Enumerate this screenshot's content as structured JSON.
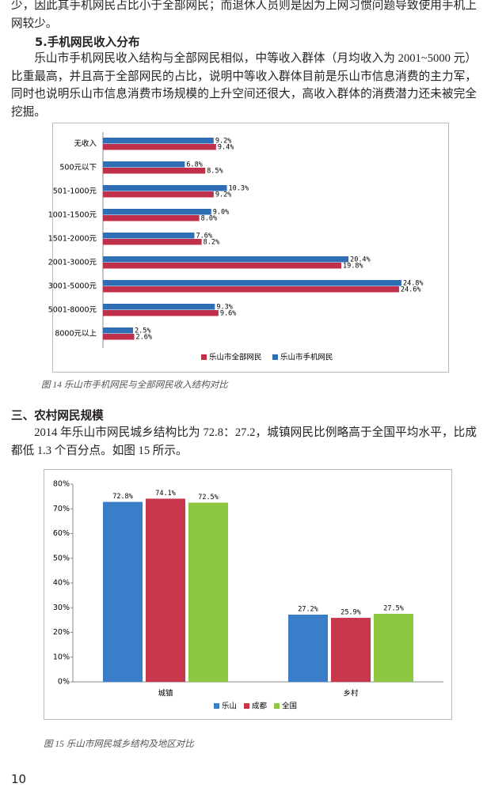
{
  "paragraphs": [
    "少，因此其手机网民占比小于全部网民；而退休人员则是因为上网习惯问题导致使用手机上网较少。",
    "乐山市手机网民收入结构与全部网民相似，中等收入群体（月均收入为 2001~5000 元）比重最高，并且高于全部网民的占比，说明中等收入群体目前是乐山市信息消费的主力军，同时也说明乐山市信息消费市场规模的上升空间还很大，高收入群体的消费潜力还未被完全挖掘。",
    "2014 年乐山市网民城乡结构比为 72.8：27.2，城镇网民比例略高于全国平均水平，比成都低 1.3 个百分点。如图 15 所示。"
  ],
  "headings": [
    "5.手机网民收入分布",
    "三、农村网民规模"
  ],
  "captions": [
    "图 14  乐山市手机网民与全部网民收入结构对比",
    "图 15  乐山市网民城乡结构及地区对比"
  ],
  "page_number": 10,
  "chart_data": [
    {
      "type": "bar",
      "orientation": "horizontal",
      "categories": [
        "无收入",
        "500元以下",
        "501-1000元",
        "1001-1500元",
        "1501-2000元",
        "2001-3000元",
        "3001-5000元",
        "5001-8000元",
        "8000元以上"
      ],
      "series": [
        {
          "name": "乐山市全部网民",
          "color": "#c0304a",
          "values": [
            9.4,
            8.5,
            9.2,
            8.0,
            8.2,
            19.8,
            24.6,
            9.6,
            2.6
          ],
          "value_labels": [
            "9.4%",
            "8.5%",
            "9.2%",
            "8.0%",
            "8.2%",
            "19.8%",
            "24.6%",
            "9.6%",
            "2.6%"
          ]
        },
        {
          "name": "乐山市手机网民",
          "color": "#2f6db5",
          "values": [
            9.2,
            6.8,
            10.3,
            9.0,
            7.6,
            20.4,
            24.8,
            9.3,
            2.5
          ],
          "value_labels": [
            "9.2%",
            "6.8%",
            "10.3%",
            "9.0%",
            "7.6%",
            "20.4%",
            "24.8%",
            "9.3%",
            "2.5%"
          ]
        }
      ]
    },
    {
      "type": "bar",
      "categories": [
        "城镇",
        "乡村"
      ],
      "series": [
        {
          "name": "乐山",
          "color": "#3a7dc9",
          "values": [
            72.8,
            27.2
          ],
          "value_labels": [
            "72.8%",
            "27.2%"
          ]
        },
        {
          "name": "成都",
          "color": "#c8364b",
          "values": [
            74.1,
            25.9
          ],
          "value_labels": [
            "74.1%",
            "25.9%"
          ]
        },
        {
          "name": "全国",
          "color": "#8dc63f",
          "values": [
            72.5,
            27.5
          ],
          "value_labels": [
            "72.5%",
            "27.5%"
          ]
        }
      ],
      "ylim": [
        0,
        80
      ],
      "yticks": [
        {
          "value": 0,
          "label": "0%"
        },
        {
          "value": 10,
          "label": "10%"
        },
        {
          "value": 20,
          "label": "20%"
        },
        {
          "value": 30,
          "label": "30%"
        },
        {
          "value": 40,
          "label": "40%"
        },
        {
          "value": 50,
          "label": "50%"
        },
        {
          "value": 60,
          "label": "60%"
        },
        {
          "value": 70,
          "label": "70%"
        },
        {
          "value": 80,
          "label": "80%"
        }
      ],
      "grid": false
    }
  ]
}
